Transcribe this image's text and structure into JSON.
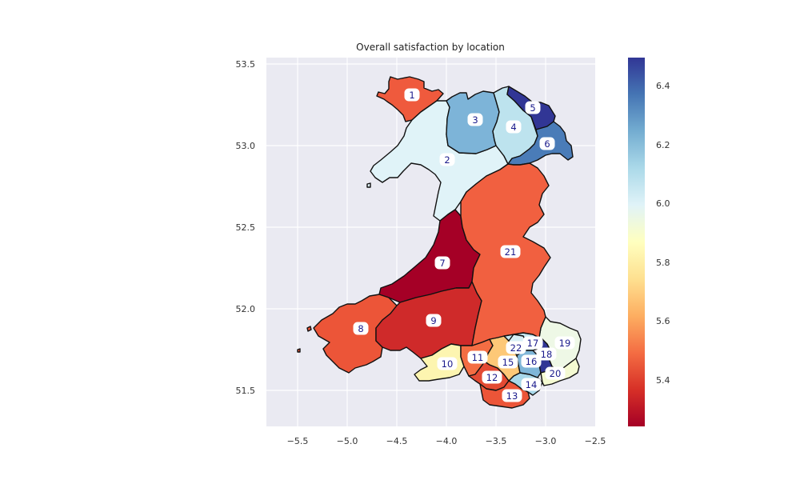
{
  "chart_data": {
    "type": "choropleth",
    "title": "Overall satisfaction by location",
    "x_ticks": [
      "−5.5",
      "−5.0",
      "−4.5",
      "−4.0",
      "−3.5",
      "−3.0",
      "−2.5"
    ],
    "y_ticks": [
      "51.5",
      "52.0",
      "52.5",
      "53.0",
      "53.5"
    ],
    "xlim": [
      -5.8,
      -2.5
    ],
    "ylim": [
      51.28,
      53.55
    ],
    "grid": true,
    "colormap": "RdYlBu",
    "colorbar": {
      "ticks": [
        "5.4",
        "5.6",
        "5.8",
        "6.0",
        "6.2",
        "6.4"
      ],
      "range": [
        5.25,
        6.5
      ]
    },
    "regions": [
      {
        "id": "1",
        "value": 5.45,
        "color": "#ef5a3d"
      },
      {
        "id": "2",
        "value": 6.05,
        "color": "#e0f3f8"
      },
      {
        "id": "3",
        "value": 6.3,
        "color": "#7db4d8"
      },
      {
        "id": "4",
        "value": 6.12,
        "color": "#bde3ee"
      },
      {
        "id": "5",
        "value": 6.5,
        "color": "#313695"
      },
      {
        "id": "6",
        "value": 6.38,
        "color": "#4a7cb8"
      },
      {
        "id": "7",
        "value": 5.25,
        "color": "#a50026"
      },
      {
        "id": "8",
        "value": 5.45,
        "color": "#ec5538"
      },
      {
        "id": "9",
        "value": 5.35,
        "color": "#cf2a2a"
      },
      {
        "id": "10",
        "value": 5.85,
        "color": "#fdf5b0"
      },
      {
        "id": "11",
        "value": 5.5,
        "color": "#f46d43"
      },
      {
        "id": "12",
        "value": 5.4,
        "color": "#e34a33"
      },
      {
        "id": "13",
        "value": 5.45,
        "color": "#ec5538"
      },
      {
        "id": "14",
        "value": 6.15,
        "color": "#a8d8ea"
      },
      {
        "id": "15",
        "value": 5.7,
        "color": "#fdc877"
      },
      {
        "id": "16",
        "value": 6.3,
        "color": "#7fb6d8"
      },
      {
        "id": "17",
        "value": 6.1,
        "color": "#c5e6f0"
      },
      {
        "id": "18",
        "value": 6.5,
        "color": "#313695"
      },
      {
        "id": "19",
        "value": 5.95,
        "color": "#eef8e6"
      },
      {
        "id": "20",
        "value": 5.95,
        "color": "#f4fad2"
      },
      {
        "id": "21",
        "value": 5.45,
        "color": "#f16040"
      },
      {
        "id": "22",
        "value": 6.05,
        "color": "#d8eff5"
      }
    ]
  }
}
